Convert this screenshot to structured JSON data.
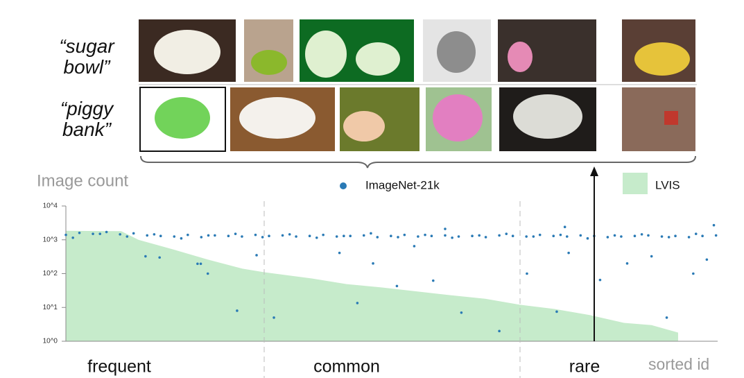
{
  "chart_data": {
    "type": "combo",
    "row_labels": [
      "“sugar bowl”",
      "“piggy bank”"
    ],
    "y_label": "Image count",
    "x_label": "sorted id",
    "groups": [
      "frequent",
      "common",
      "rare"
    ],
    "y_scale": "log",
    "xlim": [
      0,
      1203
    ],
    "ylim": [
      1,
      10000
    ],
    "yticks": [
      {
        "value": 1,
        "label": "10^0"
      },
      {
        "value": 10,
        "label": "10^1"
      },
      {
        "value": 100,
        "label": "10^2"
      },
      {
        "value": 1000,
        "label": "10^3"
      },
      {
        "value": 10000,
        "label": "10^4"
      }
    ],
    "series": [
      {
        "name": "LVIS",
        "type": "area",
        "color": "#c6ebcb",
        "x": [
          0,
          102,
          134,
          198,
          262,
          326,
          366,
          454,
          518,
          582,
          646,
          710,
          774,
          838,
          902,
          966,
          1030,
          1081,
          1130
        ],
        "values": [
          1850,
          1800,
          1000,
          520,
          260,
          140,
          110,
          72,
          49,
          39,
          30,
          23,
          18,
          12,
          9,
          6,
          3.5,
          3,
          1.8
        ]
      },
      {
        "name": "ImageNet-21k",
        "type": "scatter",
        "color": "#2a7ab5",
        "x": [
          0,
          25,
          50,
          75,
          100,
          125,
          150,
          175,
          200,
          225,
          250,
          275,
          300,
          325,
          350,
          375,
          400,
          425,
          450,
          475,
          500,
          525,
          550,
          575,
          600,
          625,
          650,
          675,
          700,
          725,
          750,
          775,
          800,
          825,
          850,
          875,
          900,
          925,
          950,
          975,
          1000,
          1025,
          1050,
          1075,
          1100,
          1125,
          1150,
          1175,
          1200,
          13,
          63,
          113,
          163,
          213,
          263,
          313,
          363,
          413,
          463,
          513,
          563,
          613,
          663,
          713,
          763,
          813,
          863,
          913,
          963,
          1013,
          1063,
          1113,
          1163,
          147,
          173,
          243,
          249,
          262,
          316,
          384,
          538,
          567,
          611,
          678,
          730,
          800,
          851,
          906,
          986,
          1036,
          1109,
          1158,
          505,
          643,
          352,
          928,
          1081,
          1183,
          1196,
          921,
          700
        ],
        "values": [
          1400,
          1600,
          1500,
          1700,
          1450,
          1550,
          1350,
          1300,
          1250,
          1400,
          1200,
          1350,
          1300,
          1250,
          1400,
          1300,
          1350,
          1250,
          1300,
          1400,
          1250,
          1300,
          1350,
          1200,
          1300,
          1400,
          1250,
          1300,
          1350,
          1250,
          1300,
          1200,
          1350,
          1300,
          1250,
          1400,
          1300,
          1250,
          1350,
          1300,
          1200,
          1250,
          1300,
          1350,
          1250,
          1300,
          1200,
          1300,
          1350,
          1150,
          1500,
          1250,
          1450,
          1100,
          1350,
          1500,
          1200,
          1450,
          1150,
          1300,
          1550,
          1200,
          1400,
          1150,
          1350,
          1500,
          1250,
          1400,
          1100,
          1350,
          1450,
          1200,
          1500,
          325,
          300,
          195,
          195,
          100,
          8,
          5,
          13.5,
          200,
          43,
          62,
          7,
          2,
          100,
          7.5,
          65,
          200,
          5,
          100,
          410,
          650,
          350,
          410,
          325,
          260,
          2700,
          2400,
          2100
        ]
      }
    ]
  }
}
